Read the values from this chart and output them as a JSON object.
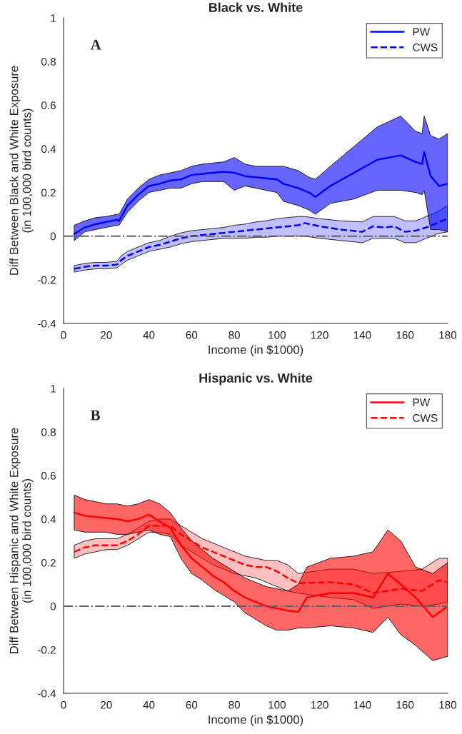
{
  "chart_data": [
    {
      "type": "line",
      "title": "Black vs. White",
      "xlabel": "Income (in $1000)",
      "ylabel": "Diff Between Black and White Exposure\n(in 100,000 bird counts)",
      "annotations": [
        "A"
      ],
      "xlim": [
        0,
        180
      ],
      "ylim": [
        -0.4,
        1
      ],
      "xticks": [
        0,
        20,
        40,
        60,
        80,
        100,
        120,
        140,
        160,
        180
      ],
      "yticks": [
        -0.4,
        -0.2,
        0,
        0.2,
        0.4,
        0.6,
        0.8,
        1
      ],
      "grid": false,
      "legend": "top right",
      "ref_lines": [
        {
          "axis": "y",
          "value": 0,
          "color": "#606060",
          "line_style": "dashdot"
        }
      ],
      "series": [
        {
          "name": "PW",
          "color": "#0000ff",
          "line_style": "solid",
          "x": [
            5,
            10,
            15,
            20,
            25,
            26,
            30,
            35,
            40,
            45,
            50,
            55,
            60,
            65,
            70,
            75,
            80,
            85,
            90,
            95,
            100,
            103,
            110,
            115,
            118,
            125,
            136,
            147,
            158,
            165,
            168,
            169,
            172,
            176,
            180
          ],
          "values": [
            0.01,
            0.04,
            0.055,
            0.065,
            0.075,
            0.07,
            0.14,
            0.19,
            0.23,
            0.24,
            0.255,
            0.26,
            0.28,
            0.285,
            0.29,
            0.295,
            0.29,
            0.275,
            0.27,
            0.265,
            0.26,
            0.24,
            0.22,
            0.2,
            0.18,
            0.23,
            0.29,
            0.35,
            0.37,
            0.34,
            0.33,
            0.385,
            0.275,
            0.23,
            0.24
          ],
          "lower": [
            -0.02,
            0.02,
            0.03,
            0.04,
            0.05,
            0.05,
            0.11,
            0.16,
            0.2,
            0.21,
            0.22,
            0.22,
            0.24,
            0.25,
            0.25,
            0.25,
            0.21,
            0.23,
            0.22,
            0.21,
            0.2,
            0.16,
            0.14,
            0.12,
            0.1,
            0.15,
            0.17,
            0.21,
            0.21,
            0.2,
            0.19,
            0.21,
            0.03,
            0.03,
            0.02
          ],
          "upper": [
            0.05,
            0.07,
            0.085,
            0.09,
            0.1,
            0.1,
            0.17,
            0.22,
            0.26,
            0.28,
            0.29,
            0.3,
            0.32,
            0.33,
            0.335,
            0.34,
            0.36,
            0.33,
            0.32,
            0.32,
            0.32,
            0.32,
            0.3,
            0.27,
            0.26,
            0.32,
            0.41,
            0.5,
            0.55,
            0.48,
            0.47,
            0.55,
            0.46,
            0.445,
            0.47
          ]
        },
        {
          "name": "CWS",
          "color": "#0000ff",
          "line_style": "dashed",
          "x": [
            5,
            10,
            15,
            20,
            25,
            27,
            30,
            35,
            40,
            45,
            50,
            55,
            60,
            65,
            70,
            75,
            80,
            85,
            90,
            95,
            100,
            105,
            110,
            113,
            120,
            130,
            140,
            145,
            150,
            155,
            160,
            165,
            170,
            175,
            180
          ],
          "values": [
            -0.15,
            -0.14,
            -0.135,
            -0.135,
            -0.13,
            -0.11,
            -0.09,
            -0.07,
            -0.05,
            -0.04,
            -0.025,
            -0.01,
            0.0,
            0.005,
            0.01,
            0.015,
            0.02,
            0.025,
            0.03,
            0.035,
            0.04,
            0.045,
            0.05,
            0.06,
            0.045,
            0.03,
            0.02,
            0.045,
            0.04,
            0.045,
            0.02,
            0.025,
            0.04,
            0.06,
            0.08
          ],
          "lower": [
            -0.165,
            -0.155,
            -0.15,
            -0.15,
            -0.145,
            -0.13,
            -0.11,
            -0.09,
            -0.07,
            -0.06,
            -0.05,
            -0.035,
            -0.025,
            -0.02,
            -0.015,
            -0.01,
            -0.01,
            -0.01,
            -0.005,
            -0.005,
            0.0,
            0.0,
            0.0,
            0.0,
            -0.01,
            -0.02,
            -0.03,
            -0.01,
            -0.01,
            -0.01,
            -0.03,
            -0.03,
            -0.01,
            0.01,
            0.02
          ],
          "upper": [
            -0.135,
            -0.125,
            -0.12,
            -0.12,
            -0.115,
            -0.09,
            -0.07,
            -0.05,
            -0.03,
            -0.02,
            0.0,
            0.015,
            0.025,
            0.03,
            0.035,
            0.04,
            0.05,
            0.055,
            0.065,
            0.07,
            0.08,
            0.085,
            0.09,
            0.09,
            0.08,
            0.07,
            0.065,
            0.09,
            0.09,
            0.09,
            0.07,
            0.07,
            0.09,
            0.11,
            0.14
          ]
        }
      ]
    },
    {
      "type": "line",
      "title": "Hispanic vs. White",
      "xlabel": "Income (in $1000)",
      "ylabel": "Diff Between Hispanic and White Exposure\n(in 100,000 bird counts)",
      "annotations": [
        "B"
      ],
      "xlim": [
        0,
        180
      ],
      "ylim": [
        -0.4,
        1
      ],
      "xticks": [
        0,
        20,
        40,
        60,
        80,
        100,
        120,
        140,
        160,
        180
      ],
      "yticks": [
        -0.4,
        -0.2,
        0,
        0.2,
        0.4,
        0.6,
        0.8,
        1
      ],
      "grid": false,
      "legend": "top right",
      "ref_lines": [
        {
          "axis": "y",
          "value": 0,
          "color": "#606060",
          "line_style": "dashdot"
        }
      ],
      "series": [
        {
          "name": "PW",
          "color": "#ff0000",
          "line_style": "solid",
          "x": [
            5,
            10,
            15,
            20,
            25,
            30,
            35,
            40,
            45,
            50,
            55,
            60,
            65,
            70,
            75,
            80,
            85,
            90,
            95,
            100,
            105,
            110,
            114,
            125,
            136,
            145,
            152,
            158,
            165,
            173,
            180
          ],
          "values": [
            0.43,
            0.415,
            0.41,
            0.405,
            0.4,
            0.39,
            0.4,
            0.42,
            0.39,
            0.36,
            0.28,
            0.22,
            0.18,
            0.14,
            0.11,
            0.07,
            0.04,
            0.02,
            0.0,
            -0.01,
            -0.02,
            -0.025,
            0.04,
            0.06,
            0.06,
            0.04,
            0.15,
            0.1,
            0.04,
            -0.05,
            0.0
          ],
          "lower": [
            0.35,
            0.34,
            0.34,
            0.34,
            0.33,
            0.33,
            0.34,
            0.35,
            0.33,
            0.32,
            0.22,
            0.15,
            0.12,
            0.08,
            0.05,
            0.02,
            -0.03,
            -0.06,
            -0.09,
            -0.11,
            -0.11,
            -0.1,
            -0.1,
            -0.09,
            -0.1,
            -0.12,
            -0.05,
            -0.13,
            -0.18,
            -0.25,
            -0.23
          ],
          "upper": [
            0.51,
            0.49,
            0.48,
            0.47,
            0.47,
            0.46,
            0.47,
            0.49,
            0.47,
            0.43,
            0.36,
            0.3,
            0.26,
            0.22,
            0.19,
            0.16,
            0.13,
            0.11,
            0.09,
            0.08,
            0.07,
            0.1,
            0.18,
            0.22,
            0.23,
            0.25,
            0.35,
            0.3,
            0.18,
            0.15,
            0.2
          ]
        },
        {
          "name": "CWS",
          "color": "#ff0000",
          "line_style": "dashed",
          "x": [
            5,
            10,
            15,
            20,
            25,
            30,
            35,
            40,
            45,
            50,
            55,
            60,
            65,
            70,
            75,
            80,
            85,
            90,
            95,
            100,
            105,
            110,
            125,
            136,
            145,
            158,
            168,
            176,
            180
          ],
          "values": [
            0.25,
            0.27,
            0.28,
            0.28,
            0.28,
            0.3,
            0.33,
            0.37,
            0.37,
            0.37,
            0.33,
            0.3,
            0.27,
            0.25,
            0.23,
            0.21,
            0.19,
            0.18,
            0.18,
            0.16,
            0.13,
            0.106,
            0.11,
            0.1,
            0.06,
            0.08,
            0.07,
            0.12,
            0.11
          ],
          "lower": [
            0.22,
            0.24,
            0.25,
            0.26,
            0.26,
            0.28,
            0.31,
            0.34,
            0.34,
            0.33,
            0.28,
            0.25,
            0.22,
            0.19,
            0.17,
            0.15,
            0.14,
            0.13,
            0.11,
            0.09,
            0.07,
            0.06,
            0.04,
            0.03,
            -0.01,
            0.01,
            0.0,
            0.01,
            0.02
          ],
          "upper": [
            0.28,
            0.3,
            0.31,
            0.31,
            0.31,
            0.33,
            0.36,
            0.39,
            0.4,
            0.4,
            0.37,
            0.34,
            0.31,
            0.29,
            0.27,
            0.25,
            0.23,
            0.22,
            0.21,
            0.21,
            0.19,
            0.15,
            0.17,
            0.17,
            0.15,
            0.16,
            0.17,
            0.22,
            0.22
          ]
        }
      ]
    }
  ]
}
